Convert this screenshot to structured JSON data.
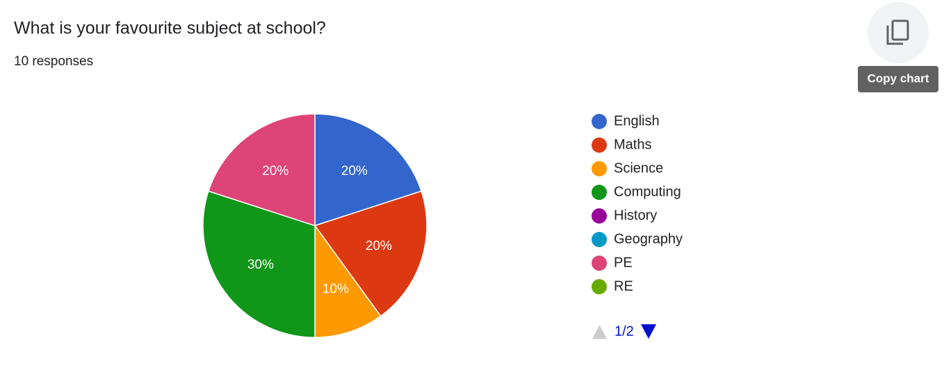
{
  "chart_data": {
    "type": "pie",
    "title": "What is your favourite subject at school?",
    "subtitle": "10 responses",
    "tooltip": "Copy chart",
    "legend_page": "1/2",
    "categories": [
      "English",
      "Maths",
      "Science",
      "Computing",
      "History",
      "Geography",
      "PE",
      "RE"
    ],
    "values": [
      20,
      20,
      10,
      30,
      0,
      0,
      20,
      0
    ],
    "value_labels": [
      "20%",
      "20%",
      "10%",
      "30%",
      null,
      null,
      "20%",
      null
    ],
    "colors": [
      "#3366cc",
      "#dc3912",
      "#ff9900",
      "#109618",
      "#990099",
      "#0099c6",
      "#dd4477",
      "#66aa00"
    ],
    "legend": "right"
  }
}
